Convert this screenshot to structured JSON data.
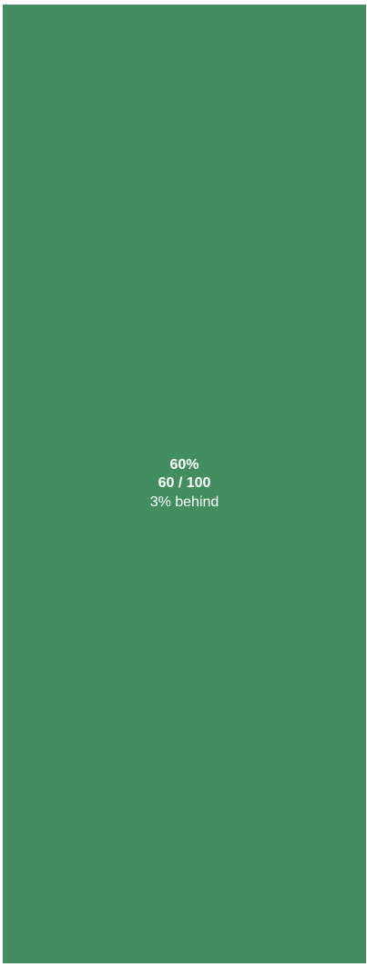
{
  "progress": {
    "percent_label": "60%",
    "ratio_label": "60 / 100",
    "status_label": "3% behind",
    "value": 60,
    "max": 100,
    "fraction": 0.6,
    "color": "#428e5e",
    "text_color": "#ffffff"
  }
}
